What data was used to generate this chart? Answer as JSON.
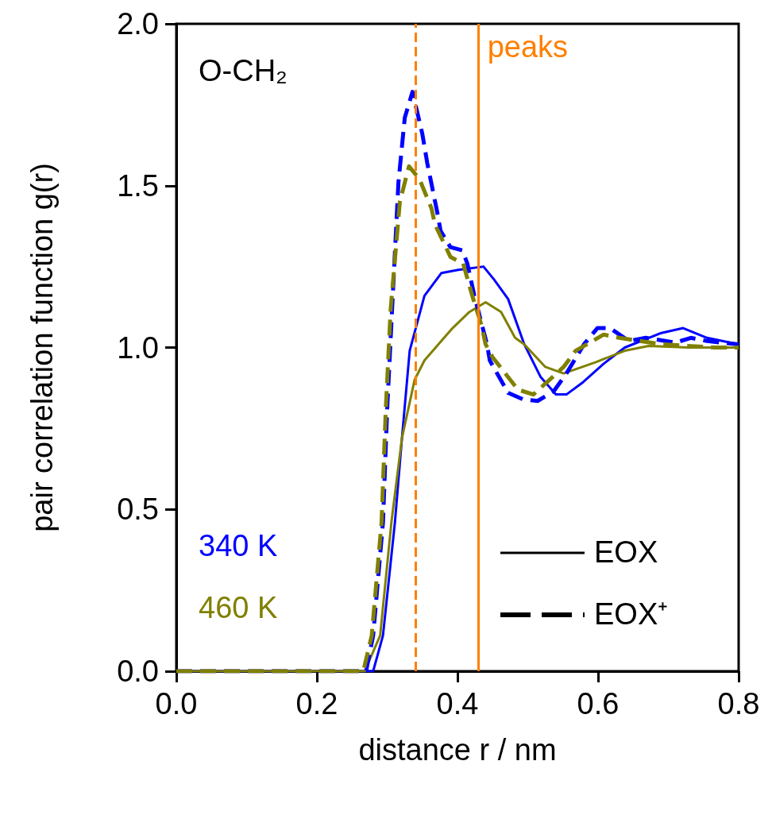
{
  "chart_data": {
    "type": "line",
    "xlabel": "distance r / nm",
    "ylabel": "pair correlation function g(r)",
    "xlim": [
      0,
      0.8
    ],
    "ylim": [
      0,
      2.0
    ],
    "xticks": [
      {
        "value": 0,
        "label": "0.0"
      },
      {
        "value": 0.2,
        "label": "0.2"
      },
      {
        "value": 0.4,
        "label": "0.4"
      },
      {
        "value": 0.6,
        "label": "0.6"
      },
      {
        "value": 0.8,
        "label": "0.8"
      }
    ],
    "yticks": [
      {
        "value": 0,
        "label": "0.0"
      },
      {
        "value": 0.5,
        "label": "0.5"
      },
      {
        "value": 1.0,
        "label": "1.0"
      },
      {
        "value": 1.5,
        "label": "1.5"
      },
      {
        "value": 2.0,
        "label": "2.0"
      }
    ],
    "grid": false,
    "series": [
      {
        "color": "#0000ff",
        "line_style": "solid",
        "x": [
          0,
          0.27,
          0.28,
          0.294,
          0.311,
          0.321,
          0.332,
          0.353,
          0.377,
          0.401,
          0.437,
          0.452,
          0.472,
          0.495,
          0.518,
          0.54,
          0.555,
          0.577,
          0.608,
          0.638,
          0.69,
          0.721,
          0.755,
          0.8
        ],
        "values": [
          0,
          0,
          0,
          0.11,
          0.46,
          0.72,
          0.99,
          1.16,
          1.23,
          1.24,
          1.25,
          1.21,
          1.15,
          1.01,
          0.91,
          0.855,
          0.855,
          0.89,
          0.95,
          1.0,
          1.045,
          1.06,
          1.03,
          1.01
        ]
      },
      {
        "color": "#808000",
        "line_style": "solid",
        "x": [
          0,
          0.268,
          0.29,
          0.306,
          0.321,
          0.339,
          0.353,
          0.377,
          0.393,
          0.417,
          0.44,
          0.462,
          0.482,
          0.495,
          0.525,
          0.551,
          0.597,
          0.638,
          0.672,
          0.729,
          0.8
        ],
        "values": [
          0,
          0,
          0.11,
          0.46,
          0.72,
          0.9,
          0.96,
          1.02,
          1.06,
          1.11,
          1.14,
          1.11,
          1.03,
          1.01,
          0.94,
          0.92,
          0.955,
          0.99,
          1.005,
          1.0,
          1.0
        ]
      },
      {
        "color": "#0000ff",
        "line_style": "dashed",
        "x": [
          0,
          0.27,
          0.28,
          0.294,
          0.3,
          0.307,
          0.316,
          0.325,
          0.336,
          0.35,
          0.357,
          0.371,
          0.376,
          0.39,
          0.407,
          0.414,
          0.424,
          0.442,
          0.446,
          0.472,
          0.493,
          0.514,
          0.537,
          0.555,
          0.58,
          0.599,
          0.617,
          0.644,
          0.668,
          0.71,
          0.732,
          0.755,
          0.8
        ],
        "values": [
          0,
          0,
          0.11,
          0.46,
          0.81,
          1.12,
          1.51,
          1.71,
          1.79,
          1.66,
          1.57,
          1.42,
          1.36,
          1.31,
          1.3,
          1.26,
          1.16,
          1.01,
          0.96,
          0.86,
          0.84,
          0.835,
          0.865,
          0.92,
          1.01,
          1.06,
          1.06,
          1.02,
          1.03,
          1.015,
          1.03,
          1.02,
          1.01
        ]
      },
      {
        "color": "#808000",
        "line_style": "dashed",
        "x": [
          0,
          0.266,
          0.278,
          0.292,
          0.298,
          0.305,
          0.318,
          0.331,
          0.346,
          0.363,
          0.368,
          0.39,
          0.408,
          0.421,
          0.434,
          0.44,
          0.45,
          0.486,
          0.508,
          0.551,
          0.568,
          0.608,
          0.63,
          0.69,
          0.766,
          0.8
        ],
        "values": [
          0,
          0,
          0.11,
          0.46,
          0.81,
          1.12,
          1.45,
          1.56,
          1.52,
          1.43,
          1.38,
          1.28,
          1.26,
          1.16,
          1.07,
          1.01,
          0.97,
          0.87,
          0.855,
          0.94,
          0.99,
          1.04,
          1.03,
          1.01,
          1.0,
          1.0
        ]
      }
    ],
    "ref_lines": [
      {
        "axis": "x",
        "value": 0.34,
        "color": "#ff7f00",
        "line_style": "dashed"
      },
      {
        "axis": "x",
        "value": 0.429,
        "color": "#ff7f00",
        "line_style": "solid",
        "label": "peaks"
      }
    ],
    "annotations": [
      "O-CH₂",
      "340 K",
      "460 K",
      "EOX",
      "EOX⁺"
    ]
  }
}
